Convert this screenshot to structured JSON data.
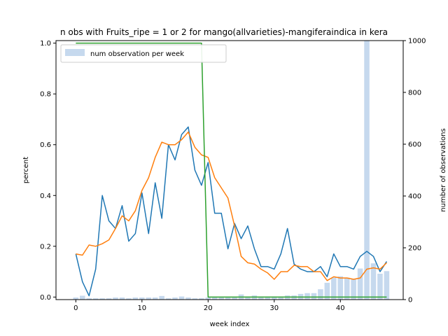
{
  "chart_data": {
    "type": "line",
    "title": "n obs with Fruits_ripe = 1 or 2 for mango(allvarieties)-mangiferaindica in kera",
    "xlabel": "week index",
    "ylabel": "percent",
    "y2label": "number of observations",
    "xlim": [
      -3,
      49.5
    ],
    "ylim": [
      -0.01,
      1.01
    ],
    "y2lim": [
      0,
      1000
    ],
    "x_ticks": [
      0,
      10,
      20,
      30,
      40
    ],
    "y_ticks": [
      0.0,
      0.2,
      0.4,
      0.6,
      0.8,
      1.0
    ],
    "y2_ticks": [
      0,
      200,
      400,
      600,
      800,
      1000
    ],
    "x_tick_labels": [
      "0",
      "10",
      "20",
      "30",
      "40"
    ],
    "y_tick_labels": [
      "0.0",
      "0.2",
      "0.4",
      "0.6",
      "0.8",
      "1.0"
    ],
    "y2_tick_labels": [
      "0",
      "200",
      "400",
      "600",
      "800",
      "1000"
    ],
    "legend": {
      "placement": "top-left",
      "entries": [
        "num observation per week"
      ]
    },
    "bars": {
      "name": "num observation per week",
      "color": "#c6d9ee",
      "x": [
        0,
        1,
        2,
        3,
        4,
        5,
        6,
        7,
        8,
        9,
        10,
        11,
        12,
        13,
        14,
        15,
        16,
        17,
        18,
        19,
        20,
        21,
        22,
        23,
        24,
        25,
        26,
        27,
        28,
        29,
        30,
        31,
        32,
        33,
        34,
        35,
        36,
        37,
        38,
        39,
        40,
        41,
        42,
        43,
        44,
        45,
        46,
        47
      ],
      "values": [
        8,
        15,
        5,
        5,
        5,
        5,
        8,
        8,
        5,
        8,
        8,
        8,
        8,
        14,
        5,
        8,
        12,
        8,
        5,
        5,
        8,
        8,
        8,
        8,
        8,
        20,
        12,
        16,
        12,
        12,
        12,
        12,
        16,
        16,
        22,
        25,
        25,
        40,
        65,
        85,
        90,
        85,
        80,
        120,
        1000,
        140,
        100,
        110
      ]
    },
    "series": [
      {
        "color": "#1f77b4",
        "x": [
          0,
          1,
          2,
          3,
          4,
          5,
          6,
          7,
          8,
          9,
          10,
          11,
          12,
          13,
          14,
          15,
          16,
          17,
          18,
          19,
          20,
          21,
          22,
          23,
          24,
          25,
          26,
          27,
          28,
          29,
          30,
          31,
          32,
          33,
          34,
          35,
          36,
          37,
          38,
          39,
          40,
          41,
          42,
          43,
          44,
          45,
          46,
          47
        ],
        "values": [
          0.17,
          0.06,
          0.005,
          0.11,
          0.4,
          0.3,
          0.27,
          0.36,
          0.22,
          0.25,
          0.41,
          0.25,
          0.45,
          0.31,
          0.6,
          0.54,
          0.64,
          0.67,
          0.5,
          0.44,
          0.53,
          0.33,
          0.33,
          0.19,
          0.29,
          0.23,
          0.28,
          0.19,
          0.12,
          0.12,
          0.11,
          0.17,
          0.27,
          0.13,
          0.11,
          0.1,
          0.1,
          0.12,
          0.08,
          0.17,
          0.12,
          0.12,
          0.11,
          0.16,
          0.18,
          0.16,
          0.1,
          0.14
        ]
      },
      {
        "color": "#ff7f0e",
        "x": [
          0,
          1,
          2,
          3,
          4,
          5,
          6,
          7,
          8,
          9,
          10,
          11,
          12,
          13,
          14,
          15,
          16,
          17,
          18,
          19,
          20,
          21,
          22,
          23,
          24,
          25,
          26,
          27,
          28,
          29,
          30,
          31,
          32,
          33,
          34,
          35,
          36,
          37,
          38,
          39,
          40,
          41,
          42,
          43,
          44,
          45,
          46,
          47
        ],
        "values": [
          0.17,
          0.165,
          0.205,
          0.2,
          0.21,
          0.225,
          0.27,
          0.32,
          0.3,
          0.34,
          0.42,
          0.47,
          0.55,
          0.61,
          0.6,
          0.6,
          0.62,
          0.65,
          0.59,
          0.56,
          0.55,
          0.47,
          0.43,
          0.39,
          0.28,
          0.16,
          0.135,
          0.13,
          0.11,
          0.095,
          0.07,
          0.1,
          0.1,
          0.125,
          0.12,
          0.12,
          0.1,
          0.1,
          0.065,
          0.08,
          0.075,
          0.075,
          0.07,
          0.075,
          0.11,
          0.115,
          0.11,
          0.135
        ]
      },
      {
        "color": "#2ca02c",
        "x": [
          0,
          1,
          2,
          3,
          4,
          5,
          6,
          7,
          8,
          9,
          10,
          11,
          12,
          13,
          14,
          15,
          16,
          17,
          18,
          19,
          20,
          21,
          22,
          23,
          24,
          25,
          26,
          27,
          28,
          29,
          30,
          31,
          32,
          33,
          34,
          35,
          36,
          37,
          38,
          39,
          40,
          41,
          42,
          43,
          44,
          45,
          46,
          47
        ],
        "values": [
          1,
          1,
          1,
          1,
          1,
          1,
          1,
          1,
          1,
          1,
          1,
          1,
          1,
          1,
          1,
          1,
          1,
          1,
          1,
          1,
          0,
          0,
          0,
          0,
          0,
          0,
          0,
          0,
          0,
          0,
          0,
          0,
          0,
          0,
          0,
          0,
          0,
          0,
          0,
          0,
          0,
          0,
          0,
          0,
          0,
          0,
          0,
          0
        ]
      }
    ]
  }
}
